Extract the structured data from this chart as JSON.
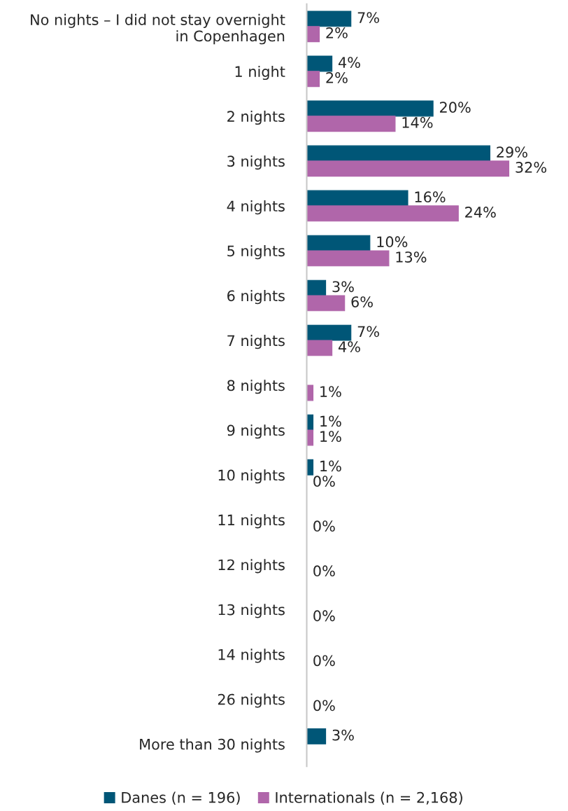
{
  "chart_data": {
    "type": "bar",
    "orientation": "horizontal",
    "categories": [
      "No nights – I did not stay overnight\nin Copenhagen",
      "1 night",
      "2 nights",
      "3 nights",
      "4 nights",
      "5 nights",
      "6 nights",
      "7 nights",
      "8 nights",
      "9 nights",
      "10 nights",
      "11 nights",
      "12 nights",
      "13 nights",
      "14 nights",
      "26 nights",
      "More than 30 nights"
    ],
    "series": [
      {
        "name": "Danes (n = 196)",
        "color": "#005677",
        "values": [
          7,
          4,
          20,
          29,
          16,
          10,
          3,
          7,
          null,
          1,
          1,
          null,
          null,
          null,
          null,
          null,
          3
        ],
        "value_labels": [
          "7%",
          "4%",
          "20%",
          "29%",
          "16%",
          "10%",
          "3%",
          "7%",
          null,
          "1%",
          "1%",
          null,
          null,
          null,
          null,
          null,
          "3%"
        ]
      },
      {
        "name": "Internationals (n = 2,168)",
        "color": "#b066aa",
        "values": [
          2,
          2,
          14,
          32,
          24,
          13,
          6,
          4,
          1,
          1,
          0,
          0,
          0,
          0,
          0,
          0,
          null
        ],
        "value_labels": [
          "2%",
          "2%",
          "14%",
          "32%",
          "24%",
          "13%",
          "6%",
          "4%",
          "1%",
          "1%",
          "0%",
          "0%",
          "0%",
          "0%",
          "0%",
          "0%",
          null
        ]
      }
    ],
    "legend": "bottom",
    "grid": false
  }
}
